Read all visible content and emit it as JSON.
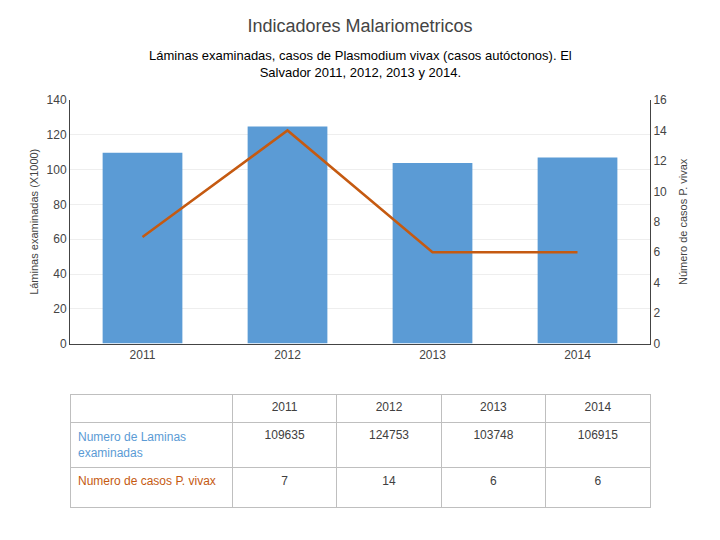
{
  "chart_data": {
    "type": "bar",
    "title": "Indicadores Malariometricos",
    "subtitle": [
      "Láminas examinadas, casos de Plasmodium vivax (casos autóctonos). El",
      "Salvador 2011, 2012, 2013 y 2014."
    ],
    "categories": [
      "2011",
      "2012",
      "2013",
      "2014"
    ],
    "series": [
      {
        "name": "Numero de Laminas examinadas",
        "type": "bar",
        "color": "#5B9BD5",
        "values": [
          109.635,
          124.753,
          103.748,
          106.915
        ],
        "value_labels": [
          "109635",
          "124753",
          "103748",
          "106915"
        ]
      },
      {
        "name": "Numero de casos P. vivax",
        "type": "line",
        "color": "#C55A11",
        "axis": "y2",
        "values": [
          7,
          14,
          6,
          6
        ]
      }
    ],
    "ylabel": "Láminas examinadas (X1000)",
    "y2label": "Número de casos P. vivax",
    "ylim": [
      0,
      140
    ],
    "yticks": [
      0,
      20,
      40,
      60,
      80,
      100,
      120,
      140
    ],
    "y2lim": [
      0,
      16
    ],
    "y2ticks": [
      0,
      2,
      4,
      6,
      8,
      10,
      12,
      14,
      16
    ],
    "grid": true,
    "data_labels": true
  }
}
